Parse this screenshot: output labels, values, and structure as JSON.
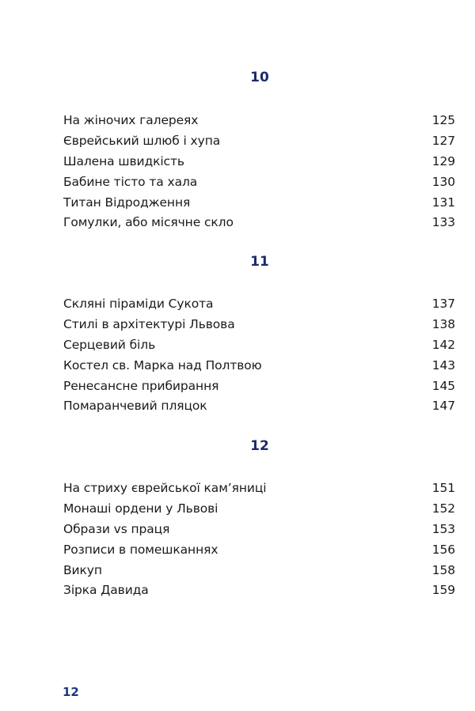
{
  "sections": [
    {
      "number": "10",
      "entries": [
        {
          "title": "На жіночих галереях",
          "page": "125"
        },
        {
          "title": "Єврейський шлюб і хупа",
          "page": "127"
        },
        {
          "title": "Шалена швидкість",
          "page": "129"
        },
        {
          "title": "Бабине тісто та хала",
          "page": "130"
        },
        {
          "title": "Титан Відродження",
          "page": "131"
        },
        {
          "title": "Гомулки, або місячне скло",
          "page": "133"
        }
      ]
    },
    {
      "number": "11",
      "entries": [
        {
          "title": "Скляні піраміди Сукота",
          "page": "137"
        },
        {
          "title": "Стилі в архітектурі Львова",
          "page": "138"
        },
        {
          "title": "Серцевий біль",
          "page": "142"
        },
        {
          "title": "Костел св. Марка над Полтвою",
          "page": "143"
        },
        {
          "title": "Ренесансне прибирання",
          "page": "145"
        },
        {
          "title": "Помаранчевий пляцок",
          "page": "147"
        }
      ]
    },
    {
      "number": "12",
      "entries": [
        {
          "title": "На стриху єврейської кам’яниці",
          "page": "151"
        },
        {
          "title": "Монаші ордени у Львові",
          "page": "152"
        },
        {
          "title": "Образи vs праця",
          "page": "153"
        },
        {
          "title": "Розписи в помешканнях",
          "page": "156"
        },
        {
          "title": "Викуп",
          "page": "158"
        },
        {
          "title": "Зірка Давида",
          "page": "159"
        }
      ]
    }
  ],
  "folio": "12",
  "colors": {
    "heading": "#1c2a6b",
    "text": "#1a1a1a"
  }
}
